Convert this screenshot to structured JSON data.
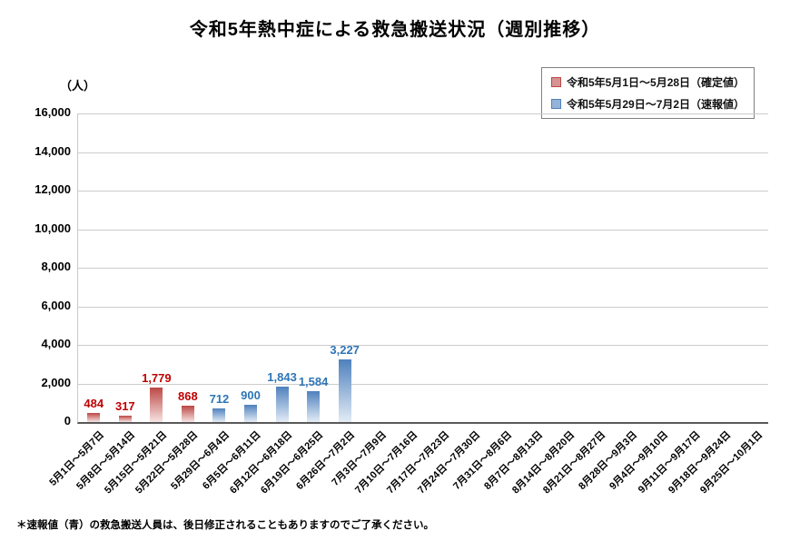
{
  "footnote": "＊速報値（青）の救急搬送人員は、後日修正されることもありますのでご了承ください。",
  "chart_data": {
    "type": "bar",
    "title": "令和5年熱中症による救急搬送状況（週別推移）",
    "unit_label": "（人）",
    "xlabel": "",
    "ylabel": "（人）",
    "ylim": [
      0,
      16000
    ],
    "ytick_step": 2000,
    "grid": true,
    "legend_position": "top-right",
    "categories": [
      "5月1日～5月7日",
      "5月8日～5月14日",
      "5月15日～5月21日",
      "5月22日～5月28日",
      "5月29日～6月4日",
      "6月5日～6月11日",
      "6月12日～6月18日",
      "6月19日～6月25日",
      "6月26日～7月2日",
      "7月3日～7月9日",
      "7月10日～7月16日",
      "7月17日～7月23日",
      "7月24日～7月30日",
      "7月31日～8月6日",
      "8月7日～8月13日",
      "8月14日～8月20日",
      "8月21日～8月27日",
      "8月28日～9月3日",
      "9月4日～9月10日",
      "9月11日～9月17日",
      "9月18日～9月24日",
      "9月25日～10月1日"
    ],
    "values": [
      484,
      317,
      1779,
      868,
      712,
      900,
      1843,
      1584,
      3227,
      null,
      null,
      null,
      null,
      null,
      null,
      null,
      null,
      null,
      null,
      null,
      null,
      null
    ],
    "value_labels": [
      "484",
      "317",
      "1,779",
      "868",
      "712",
      "900",
      "1,843",
      "1,584",
      "3,227"
    ],
    "point_series": [
      0,
      0,
      0,
      0,
      1,
      1,
      1,
      1,
      1
    ],
    "series": [
      {
        "name": "令和5年5月1日～5月28日（確定値）",
        "color": "#bc4744",
        "color_light": "#f6e4e3",
        "label_color": "#c00000",
        "marker_color": "#d59492"
      },
      {
        "name": "令和5年5月29日～7月2日（速報値）",
        "color": "#4f81bd",
        "color_light": "#e3ecf6",
        "label_color": "#2e75b6",
        "marker_color": "#95b3d7"
      }
    ],
    "ytick_labels": [
      "0",
      "2,000",
      "4,000",
      "6,000",
      "8,000",
      "10,000",
      "12,000",
      "14,000",
      "16,000"
    ]
  }
}
